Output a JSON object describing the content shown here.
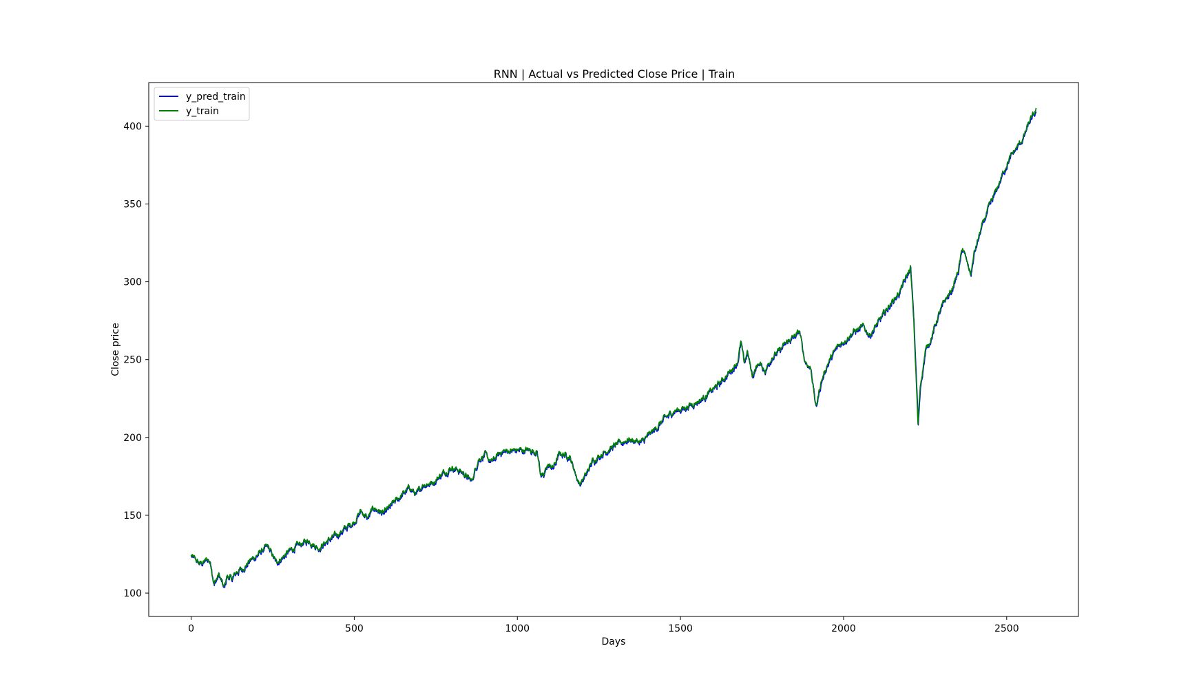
{
  "chart_data": {
    "type": "line",
    "title": "RNN | Actual vs Predicted Close Price | Train",
    "xlabel": "Days",
    "ylabel": "Close price",
    "xlim": [
      -130,
      2720
    ],
    "ylim": [
      85,
      428
    ],
    "xticks": [
      0,
      500,
      1000,
      1500,
      2000,
      2500
    ],
    "yticks": [
      100,
      150,
      200,
      250,
      300,
      350,
      400
    ],
    "grid": false,
    "legend_position": "top-left",
    "colors": {
      "y_pred_train": "#0000ff",
      "y_train": "#008000"
    },
    "anchors": [
      [
        0,
        124
      ],
      [
        15,
        121
      ],
      [
        25,
        119
      ],
      [
        40,
        120
      ],
      [
        50,
        122
      ],
      [
        60,
        119
      ],
      [
        70,
        106
      ],
      [
        85,
        112
      ],
      [
        100,
        103
      ],
      [
        110,
        111
      ],
      [
        125,
        109
      ],
      [
        140,
        114
      ],
      [
        160,
        116
      ],
      [
        180,
        121
      ],
      [
        200,
        124
      ],
      [
        220,
        128
      ],
      [
        235,
        130
      ],
      [
        250,
        124
      ],
      [
        260,
        120
      ],
      [
        280,
        123
      ],
      [
        300,
        127
      ],
      [
        330,
        131
      ],
      [
        360,
        134
      ],
      [
        390,
        129
      ],
      [
        420,
        134
      ],
      [
        450,
        138
      ],
      [
        480,
        143
      ],
      [
        500,
        146
      ],
      [
        520,
        153
      ],
      [
        540,
        148
      ],
      [
        560,
        155
      ],
      [
        590,
        151
      ],
      [
        620,
        158
      ],
      [
        650,
        164
      ],
      [
        670,
        168
      ],
      [
        690,
        163
      ],
      [
        710,
        170
      ],
      [
        740,
        171
      ],
      [
        770,
        177
      ],
      [
        800,
        181
      ],
      [
        830,
        178
      ],
      [
        860,
        172
      ],
      [
        880,
        186
      ],
      [
        900,
        189
      ],
      [
        920,
        184
      ],
      [
        950,
        191
      ],
      [
        1000,
        192
      ],
      [
        1040,
        192
      ],
      [
        1060,
        191
      ],
      [
        1070,
        178
      ],
      [
        1080,
        174
      ],
      [
        1090,
        182
      ],
      [
        1110,
        181
      ],
      [
        1130,
        190
      ],
      [
        1160,
        188
      ],
      [
        1190,
        170
      ],
      [
        1210,
        176
      ],
      [
        1230,
        185
      ],
      [
        1260,
        190
      ],
      [
        1300,
        195
      ],
      [
        1340,
        199
      ],
      [
        1380,
        197
      ],
      [
        1420,
        205
      ],
      [
        1450,
        212
      ],
      [
        1480,
        217
      ],
      [
        1510,
        219
      ],
      [
        1540,
        222
      ],
      [
        1560,
        224
      ],
      [
        1590,
        229
      ],
      [
        1620,
        235
      ],
      [
        1650,
        242
      ],
      [
        1675,
        249
      ],
      [
        1685,
        261
      ],
      [
        1695,
        248
      ],
      [
        1705,
        255
      ],
      [
        1720,
        240
      ],
      [
        1740,
        248
      ],
      [
        1760,
        243
      ],
      [
        1780,
        252
      ],
      [
        1800,
        255
      ],
      [
        1830,
        262
      ],
      [
        1850,
        265
      ],
      [
        1865,
        268
      ],
      [
        1880,
        250
      ],
      [
        1900,
        244
      ],
      [
        1915,
        219
      ],
      [
        1930,
        235
      ],
      [
        1950,
        247
      ],
      [
        1980,
        258
      ],
      [
        2000,
        262
      ],
      [
        2030,
        268
      ],
      [
        2060,
        271
      ],
      [
        2080,
        266
      ],
      [
        2110,
        275
      ],
      [
        2140,
        285
      ],
      [
        2170,
        293
      ],
      [
        2190,
        302
      ],
      [
        2205,
        309
      ],
      [
        2215,
        275
      ],
      [
        2225,
        225
      ],
      [
        2228,
        208
      ],
      [
        2235,
        233
      ],
      [
        2250,
        255
      ],
      [
        2270,
        265
      ],
      [
        2290,
        278
      ],
      [
        2310,
        288
      ],
      [
        2330,
        294
      ],
      [
        2350,
        306
      ],
      [
        2365,
        322
      ],
      [
        2380,
        311
      ],
      [
        2390,
        305
      ],
      [
        2400,
        318
      ],
      [
        2420,
        333
      ],
      [
        2440,
        345
      ],
      [
        2460,
        355
      ],
      [
        2480,
        365
      ],
      [
        2500,
        376
      ],
      [
        2520,
        383
      ],
      [
        2550,
        392
      ],
      [
        2570,
        403
      ],
      [
        2585,
        408
      ],
      [
        2590,
        410
      ]
    ],
    "series": [
      {
        "name": "y_pred_train"
      },
      {
        "name": "y_train"
      }
    ]
  }
}
